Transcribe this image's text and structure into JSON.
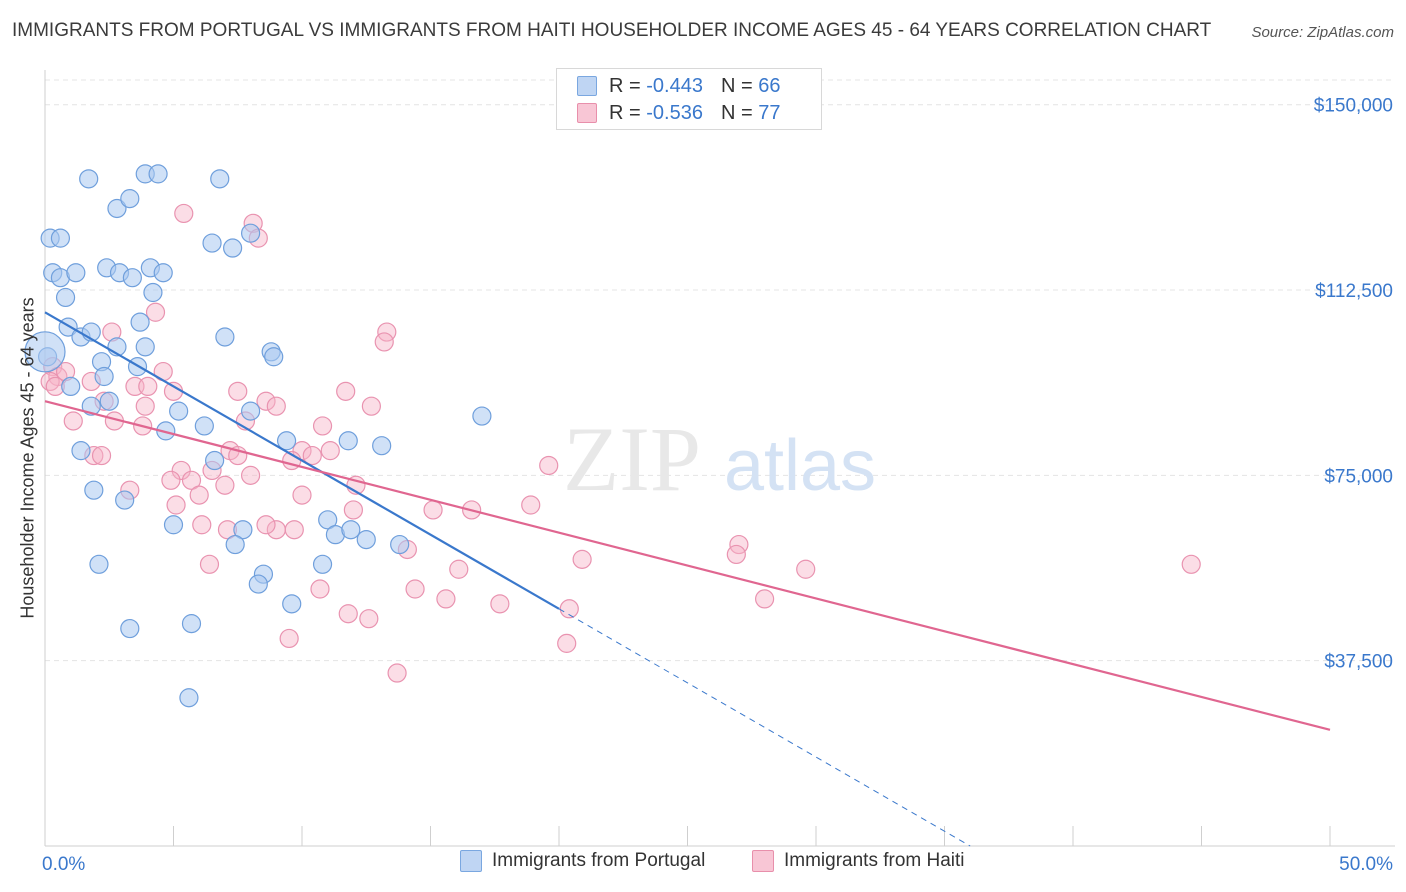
{
  "title": "IMMIGRANTS FROM PORTUGAL VS IMMIGRANTS FROM HAITI HOUSEHOLDER INCOME AGES 45 - 64 YEARS CORRELATION CHART",
  "source": "Source: ZipAtlas.com",
  "watermark": {
    "zip": "ZIP",
    "atlas": "atlas"
  },
  "colors": {
    "blue": "#3a78cc",
    "pink": "#e06690",
    "grid": "#e4e4e4",
    "axis_text": "#3a78cc"
  },
  "legend": {
    "rows": [
      {
        "r_label": "R =",
        "r_value": "-0.443",
        "n_label": "N =",
        "n_value": "66"
      },
      {
        "r_label": "R =",
        "r_value": "-0.536",
        "n_label": "N =",
        "n_value": "77"
      }
    ]
  },
  "chart_data": {
    "type": "scatter",
    "ylabel": "Householder Income Ages 45 - 64 years",
    "xlim": [
      0,
      50
    ],
    "ylim": [
      0,
      155000
    ],
    "y_ticks": [
      {
        "value": 37500,
        "label": "$37,500"
      },
      {
        "value": 75000,
        "label": "$75,000"
      },
      {
        "value": 112500,
        "label": "$112,500"
      },
      {
        "value": 150000,
        "label": "$150,000"
      }
    ],
    "x_tick_labels": {
      "min": "0.0%",
      "max": "50.0%"
    },
    "legend_placement": "bottom",
    "series": [
      {
        "name": "Immigrants from Portugal",
        "color": "blue",
        "trend": {
          "x": [
            0,
            20
          ],
          "y": [
            108000,
            48000
          ],
          "dashed_to": [
            36,
            0
          ]
        },
        "points": [
          [
            0.2,
            123000
          ],
          [
            0.6,
            123000
          ],
          [
            1.7,
            135000
          ],
          [
            3.9,
            136000
          ],
          [
            4.4,
            136000
          ],
          [
            6.8,
            135000
          ],
          [
            2.8,
            129000
          ],
          [
            3.3,
            131000
          ],
          [
            6.5,
            122000
          ],
          [
            7.3,
            121000
          ],
          [
            8.0,
            124000
          ],
          [
            0.3,
            116000
          ],
          [
            0.6,
            115000
          ],
          [
            1.2,
            116000
          ],
          [
            2.4,
            117000
          ],
          [
            2.9,
            116000
          ],
          [
            3.4,
            115000
          ],
          [
            4.1,
            117000
          ],
          [
            4.6,
            116000
          ],
          [
            0.8,
            111000
          ],
          [
            4.2,
            112000
          ],
          [
            3.7,
            106000
          ],
          [
            0.9,
            105000
          ],
          [
            1.4,
            103000
          ],
          [
            1.8,
            104000
          ],
          [
            2.8,
            101000
          ],
          [
            3.9,
            101000
          ],
          [
            7.0,
            103000
          ],
          [
            8.8,
            100000
          ],
          [
            8.9,
            99000
          ],
          [
            0.1,
            99000
          ],
          [
            2.2,
            98000
          ],
          [
            3.6,
            97000
          ],
          [
            2.3,
            95000
          ],
          [
            1.0,
            93000
          ],
          [
            2.5,
            90000
          ],
          [
            1.8,
            89000
          ],
          [
            5.2,
            88000
          ],
          [
            8.0,
            88000
          ],
          [
            17.0,
            87000
          ],
          [
            6.2,
            85000
          ],
          [
            4.7,
            84000
          ],
          [
            9.4,
            82000
          ],
          [
            11.8,
            82000
          ],
          [
            13.1,
            81000
          ],
          [
            1.4,
            80000
          ],
          [
            6.6,
            78000
          ],
          [
            1.9,
            72000
          ],
          [
            3.1,
            70000
          ],
          [
            5.0,
            65000
          ],
          [
            7.7,
            64000
          ],
          [
            11.0,
            66000
          ],
          [
            11.3,
            63000
          ],
          [
            11.9,
            64000
          ],
          [
            12.5,
            62000
          ],
          [
            7.4,
            61000
          ],
          [
            13.8,
            61000
          ],
          [
            2.1,
            57000
          ],
          [
            10.8,
            57000
          ],
          [
            8.5,
            55000
          ],
          [
            8.3,
            53000
          ],
          [
            9.6,
            49000
          ],
          [
            3.3,
            44000
          ],
          [
            5.7,
            45000
          ],
          [
            5.6,
            30000
          ],
          [
            0.0,
            100000
          ]
        ]
      },
      {
        "name": "Immigrants from Haiti",
        "color": "pink",
        "trend": {
          "x": [
            0,
            50
          ],
          "y": [
            90000,
            23500
          ]
        },
        "points": [
          [
            5.4,
            128000
          ],
          [
            8.1,
            126000
          ],
          [
            8.3,
            123000
          ],
          [
            4.3,
            108000
          ],
          [
            13.3,
            104000
          ],
          [
            13.2,
            102000
          ],
          [
            2.6,
            104000
          ],
          [
            0.3,
            97000
          ],
          [
            0.5,
            95000
          ],
          [
            0.8,
            96000
          ],
          [
            1.8,
            94000
          ],
          [
            4.6,
            96000
          ],
          [
            0.2,
            94000
          ],
          [
            0.4,
            93000
          ],
          [
            2.3,
            90000
          ],
          [
            3.5,
            93000
          ],
          [
            4.0,
            93000
          ],
          [
            5.0,
            92000
          ],
          [
            7.5,
            92000
          ],
          [
            11.7,
            92000
          ],
          [
            8.6,
            90000
          ],
          [
            9.0,
            89000
          ],
          [
            12.7,
            89000
          ],
          [
            3.9,
            89000
          ],
          [
            1.1,
            86000
          ],
          [
            2.7,
            86000
          ],
          [
            3.8,
            85000
          ],
          [
            7.8,
            86000
          ],
          [
            10.8,
            85000
          ],
          [
            1.9,
            79000
          ],
          [
            2.2,
            79000
          ],
          [
            7.2,
            80000
          ],
          [
            7.5,
            79000
          ],
          [
            10.0,
            80000
          ],
          [
            10.4,
            79000
          ],
          [
            11.1,
            80000
          ],
          [
            9.6,
            78000
          ],
          [
            19.6,
            77000
          ],
          [
            5.3,
            76000
          ],
          [
            6.5,
            76000
          ],
          [
            8.0,
            75000
          ],
          [
            4.9,
            74000
          ],
          [
            5.7,
            74000
          ],
          [
            7.0,
            73000
          ],
          [
            12.1,
            73000
          ],
          [
            3.3,
            72000
          ],
          [
            6.0,
            71000
          ],
          [
            10.0,
            71000
          ],
          [
            5.1,
            69000
          ],
          [
            18.9,
            69000
          ],
          [
            16.6,
            68000
          ],
          [
            15.1,
            68000
          ],
          [
            12.0,
            68000
          ],
          [
            7.1,
            64000
          ],
          [
            9.0,
            64000
          ],
          [
            9.7,
            64000
          ],
          [
            8.6,
            65000
          ],
          [
            6.1,
            65000
          ],
          [
            14.1,
            60000
          ],
          [
            27.0,
            61000
          ],
          [
            20.9,
            58000
          ],
          [
            26.9,
            59000
          ],
          [
            29.6,
            56000
          ],
          [
            44.6,
            57000
          ],
          [
            6.4,
            57000
          ],
          [
            16.1,
            56000
          ],
          [
            10.7,
            52000
          ],
          [
            14.4,
            52000
          ],
          [
            15.6,
            50000
          ],
          [
            17.7,
            49000
          ],
          [
            28.0,
            50000
          ],
          [
            11.8,
            47000
          ],
          [
            12.6,
            46000
          ],
          [
            20.4,
            48000
          ],
          [
            9.5,
            42000
          ],
          [
            20.3,
            41000
          ],
          [
            13.7,
            35000
          ]
        ]
      }
    ]
  }
}
